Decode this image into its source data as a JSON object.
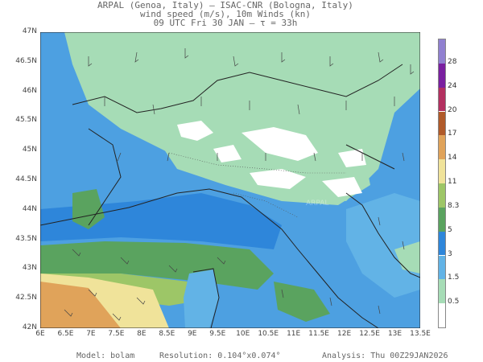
{
  "header": {
    "line1": "ARPAL (Genoa, Italy)  —  ISAC-CNR (Bologna, Italy)",
    "line2": "wind speed (m/s), 10m Winds (kn)",
    "line3": "09 UTC Fri 30 JAN  —  τ = 33h"
  },
  "axes": {
    "lat_labels": [
      "47N",
      "46.5N",
      "46N",
      "45.5N",
      "45N",
      "44.5N",
      "44N",
      "43.5N",
      "43N",
      "42.5N",
      "42N"
    ],
    "lon_labels": [
      "6E",
      "6.5E",
      "7E",
      "7.5E",
      "8E",
      "8.5E",
      "9E",
      "9.5E",
      "10E",
      "10.5E",
      "11E",
      "11.5E",
      "12E",
      "12.5E",
      "13E",
      "13.5E"
    ]
  },
  "colorbar": {
    "labels": [
      "0.5",
      "1.5",
      "3",
      "5",
      "8.3",
      "11",
      "14",
      "17",
      "20",
      "24",
      "28"
    ],
    "colors": [
      "#ffffff",
      "#a6dcb6",
      "#62b3e6",
      "#2e86da",
      "#5aa35f",
      "#9dc667",
      "#f0e39a",
      "#e0a35a",
      "#b05a2a",
      "#b33060",
      "#7a20a0",
      "#9080d0"
    ]
  },
  "watermark": "ARPAL",
  "footer": {
    "model": "Model: bolam",
    "resolution": "Resolution: 0.104°x0.074°",
    "analysis": "Analysis: Thu 00Z29JAN2026"
  }
}
